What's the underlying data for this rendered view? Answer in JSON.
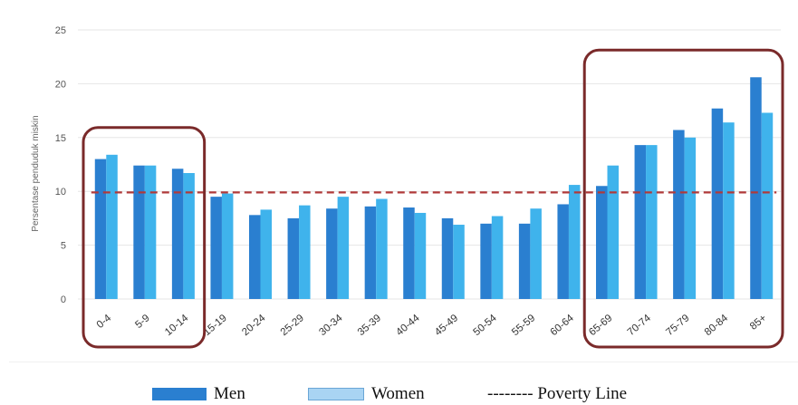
{
  "chart_data": {
    "type": "bar",
    "ylabel": "Persentase penduduk miskin",
    "ylim": [
      0,
      25
    ],
    "yticks": [
      0,
      5,
      10,
      15,
      20,
      25
    ],
    "grid": true,
    "categories": [
      "0-4",
      "5-9",
      "10-14",
      "15-19",
      "20-24",
      "25-29",
      "30-34",
      "35-39",
      "40-44",
      "45-49",
      "50-54",
      "55-59",
      "60-64",
      "65-69",
      "70-74",
      "75-79",
      "80-84",
      "85+"
    ],
    "series": [
      {
        "name": "Men",
        "color": "#2a7fd0",
        "values": [
          13.0,
          12.4,
          12.1,
          9.5,
          7.8,
          7.5,
          8.4,
          8.6,
          8.5,
          7.5,
          7.0,
          7.0,
          8.8,
          10.5,
          14.3,
          15.7,
          17.7,
          20.6
        ]
      },
      {
        "name": "Women",
        "color": "#3fb3ec",
        "values": [
          13.4,
          12.4,
          11.7,
          9.8,
          8.3,
          8.7,
          9.5,
          9.3,
          8.0,
          6.9,
          7.7,
          8.4,
          10.6,
          12.4,
          14.3,
          15.0,
          16.4,
          17.3
        ]
      }
    ],
    "reference_line": {
      "label": "Poverty Line",
      "value": 9.9,
      "color": "#b03a3a",
      "style": "dashed"
    },
    "highlight_groups": [
      {
        "from": "0-4",
        "to": "10-14",
        "color": "#7a2a2a"
      },
      {
        "from": "65-69",
        "to": "85+",
        "color": "#7a2a2a"
      }
    ],
    "legend": {
      "placement": "bottom",
      "items": [
        {
          "label": "Men",
          "color": "#2a7fd0",
          "kind": "bar"
        },
        {
          "label": "Women",
          "color": "#a9d4f3",
          "kind": "bar"
        },
        {
          "label": "-------- Poverty Line",
          "kind": "line"
        }
      ]
    }
  }
}
